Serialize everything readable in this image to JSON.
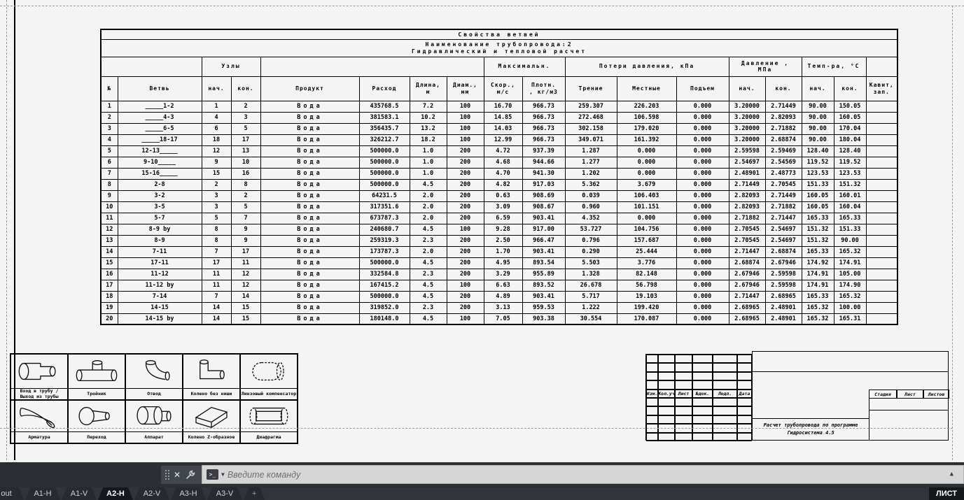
{
  "colors": {
    "canvas_bg": "#f4f4f4",
    "line": "#000000",
    "dashed_margin": "#9a9a9a",
    "cmdbar_bg": "#2c2e33",
    "command_input_bg": "#d6d6d6",
    "tabbar_bg": "#31353a",
    "active_tab_bg": "#14171b"
  },
  "table": {
    "title": "Свойства ветвей",
    "subtitle": "Наименование трубопровода:2\nГидравлический и тепловой расчет",
    "group_cells": [
      {
        "label": ""
      },
      {
        "label": "Узлы"
      },
      {
        "label": ""
      },
      {
        "label": "Максимальн."
      },
      {
        "label": "Потери давления, кПа"
      },
      {
        "label": "Давление ,\nМПа"
      },
      {
        "label": "Темп-ра, °C"
      },
      {
        "label": ""
      }
    ],
    "columns": [
      {
        "label": "№"
      },
      {
        "label": "Ветвь"
      },
      {
        "label": "нач."
      },
      {
        "label": "кон."
      },
      {
        "label": "Продукт"
      },
      {
        "label": "Расход"
      },
      {
        "label": "Длина,\nм"
      },
      {
        "label": "Диам.,\nмм"
      },
      {
        "label": "Скор.,\nм/с"
      },
      {
        "label": "Плотн.\n, кг/м3"
      },
      {
        "label": "Трение"
      },
      {
        "label": "Местные"
      },
      {
        "label": "Подъем"
      },
      {
        "label": "нач."
      },
      {
        "label": "кон."
      },
      {
        "label": "нач."
      },
      {
        "label": "кон."
      },
      {
        "label": "Кавит,\nзап."
      }
    ],
    "rows": [
      [
        "1",
        "_____1-2",
        "1",
        "2",
        "Вода",
        "435768.5",
        "7.2",
        "100",
        "16.70",
        "966.73",
        "259.307",
        "226.203",
        "0.000",
        "3.20000",
        "2.71449",
        "90.00",
        "150.05",
        ""
      ],
      [
        "2",
        "_____4-3",
        "4",
        "3",
        "Вода",
        "381583.1",
        "10.2",
        "100",
        "14.85",
        "966.73",
        "272.468",
        "106.598",
        "0.000",
        "3.20000",
        "2.82093",
        "90.00",
        "160.05",
        ""
      ],
      [
        "3",
        "_____6-5",
        "6",
        "5",
        "Вода",
        "356435.7",
        "13.2",
        "100",
        "14.03",
        "966.73",
        "302.158",
        "179.020",
        "0.000",
        "3.20000",
        "2.71882",
        "90.00",
        "170.04",
        ""
      ],
      [
        "4",
        "_____18-17",
        "18",
        "17",
        "Вода",
        "326212.7",
        "18.2",
        "100",
        "12.99",
        "966.73",
        "349.071",
        "161.392",
        "0.000",
        "3.20000",
        "2.68874",
        "90.00",
        "180.04",
        ""
      ],
      [
        "5",
        "12-13_____",
        "12",
        "13",
        "Вода",
        "500000.0",
        "1.0",
        "200",
        "4.72",
        "937.39",
        "1.287",
        "0.000",
        "0.000",
        "2.59598",
        "2.59469",
        "128.40",
        "128.40",
        ""
      ],
      [
        "6",
        "9-10_____",
        "9",
        "10",
        "Вода",
        "500000.0",
        "1.0",
        "200",
        "4.68",
        "944.66",
        "1.277",
        "0.000",
        "0.000",
        "2.54697",
        "2.54569",
        "119.52",
        "119.52",
        ""
      ],
      [
        "7",
        "15-16_____",
        "15",
        "16",
        "Вода",
        "500000.0",
        "1.0",
        "200",
        "4.70",
        "941.30",
        "1.202",
        "0.000",
        "0.000",
        "2.48901",
        "2.48773",
        "123.53",
        "123.53",
        ""
      ],
      [
        "8",
        "2-8",
        "2",
        "8",
        "Вода",
        "500000.0",
        "4.5",
        "200",
        "4.82",
        "917.03",
        "5.362",
        "3.679",
        "0.000",
        "2.71449",
        "2.70545",
        "151.33",
        "151.32",
        ""
      ],
      [
        "9",
        "3-2",
        "3",
        "2",
        "Вода",
        "64231.5",
        "2.0",
        "200",
        "0.63",
        "908.69",
        "0.039",
        "106.403",
        "0.000",
        "2.82093",
        "2.71449",
        "160.05",
        "160.01",
        ""
      ],
      [
        "10",
        "3-5",
        "3",
        "5",
        "Вода",
        "317351.6",
        "2.0",
        "200",
        "3.09",
        "908.67",
        "0.960",
        "101.151",
        "0.000",
        "2.82093",
        "2.71882",
        "160.05",
        "160.04",
        ""
      ],
      [
        "11",
        "5-7",
        "5",
        "7",
        "Вода",
        "673787.3",
        "2.0",
        "200",
        "6.59",
        "903.41",
        "4.352",
        "0.000",
        "0.000",
        "2.71882",
        "2.71447",
        "165.33",
        "165.33",
        ""
      ],
      [
        "12",
        "8-9 by",
        "8",
        "9",
        "Вода",
        "240680.7",
        "4.5",
        "100",
        "9.28",
        "917.00",
        "53.727",
        "104.756",
        "0.000",
        "2.70545",
        "2.54697",
        "151.32",
        "151.33",
        ""
      ],
      [
        "13",
        "8-9",
        "8",
        "9",
        "Вода",
        "259319.3",
        "2.3",
        "200",
        "2.50",
        "966.47",
        "0.796",
        "157.687",
        "0.000",
        "2.70545",
        "2.54697",
        "151.32",
        "90.00",
        ""
      ],
      [
        "14",
        "7-11",
        "7",
        "17",
        "Вода",
        "173787.3",
        "2.0",
        "200",
        "1.70",
        "903.41",
        "0.290",
        "25.444",
        "0.000",
        "2.71447",
        "2.68874",
        "165.33",
        "165.32",
        ""
      ],
      [
        "15",
        "17-11",
        "17",
        "11",
        "Вода",
        "500000.0",
        "4.5",
        "200",
        "4.95",
        "893.54",
        "5.503",
        "3.776",
        "0.000",
        "2.68874",
        "2.67946",
        "174.92",
        "174.91",
        ""
      ],
      [
        "16",
        "11-12",
        "11",
        "12",
        "Вода",
        "332584.8",
        "2.3",
        "200",
        "3.29",
        "955.89",
        "1.328",
        "82.148",
        "0.000",
        "2.67946",
        "2.59598",
        "174.91",
        "105.00",
        ""
      ],
      [
        "17",
        "11-12 by",
        "11",
        "12",
        "Вода",
        "167415.2",
        "4.5",
        "100",
        "6.63",
        "893.52",
        "26.678",
        "56.798",
        "0.000",
        "2.67946",
        "2.59598",
        "174.91",
        "174.90",
        ""
      ],
      [
        "18",
        "7-14",
        "7",
        "14",
        "Вода",
        "500000.0",
        "4.5",
        "200",
        "4.89",
        "903.41",
        "5.717",
        "19.103",
        "0.000",
        "2.71447",
        "2.68965",
        "165.33",
        "165.32",
        ""
      ],
      [
        "19",
        "14-15",
        "14",
        "15",
        "Вода",
        "319852.0",
        "2.3",
        "200",
        "3.13",
        "959.53",
        "1.222",
        "199.420",
        "0.000",
        "2.68965",
        "2.48901",
        "165.32",
        "100.00",
        ""
      ],
      [
        "20",
        "14-15 by",
        "14",
        "15",
        "Вода",
        "180148.0",
        "4.5",
        "100",
        "7.05",
        "903.38",
        "30.554",
        "170.087",
        "0.000",
        "2.68965",
        "2.48901",
        "165.32",
        "165.31",
        ""
      ]
    ]
  },
  "legend": {
    "items": [
      {
        "icon": "pipe-inlet",
        "label": "Вход в трубу /\nВыход из трубы"
      },
      {
        "icon": "tee",
        "label": "Тройник"
      },
      {
        "icon": "bend",
        "label": "Отвод"
      },
      {
        "icon": "elbow",
        "label": "Колено без ниши"
      },
      {
        "icon": "lens-compensator",
        "label": "Линзовый компенсатор"
      },
      {
        "icon": "valve",
        "label": "Арматура"
      },
      {
        "icon": "reducer",
        "label": "Переход"
      },
      {
        "icon": "apparatus",
        "label": "Аппарат"
      },
      {
        "icon": "z-elbow",
        "label": "Колено Z-образное"
      },
      {
        "icon": "diaphragm",
        "label": "Диафрагма"
      }
    ]
  },
  "title_block": {
    "stamp_columns": [
      "Изм.",
      "Кол.уч",
      "Лист",
      "№док.",
      "Подп.",
      "Дата"
    ],
    "stage_headers": [
      "Стадия",
      "Лист",
      "Листов"
    ],
    "doc_line1": "Расчет трубопровода по программе",
    "doc_line2": "Гидросистема 4.5"
  },
  "command_bar": {
    "placeholder": "Введите команду"
  },
  "status_bar": {
    "tabs": [
      "out",
      "A1-H",
      "A1-V",
      "A2-H",
      "A2-V",
      "A3-H",
      "A3-V",
      "+"
    ],
    "active_tab": "A2-H",
    "right_label": "ЛИСТ"
  }
}
